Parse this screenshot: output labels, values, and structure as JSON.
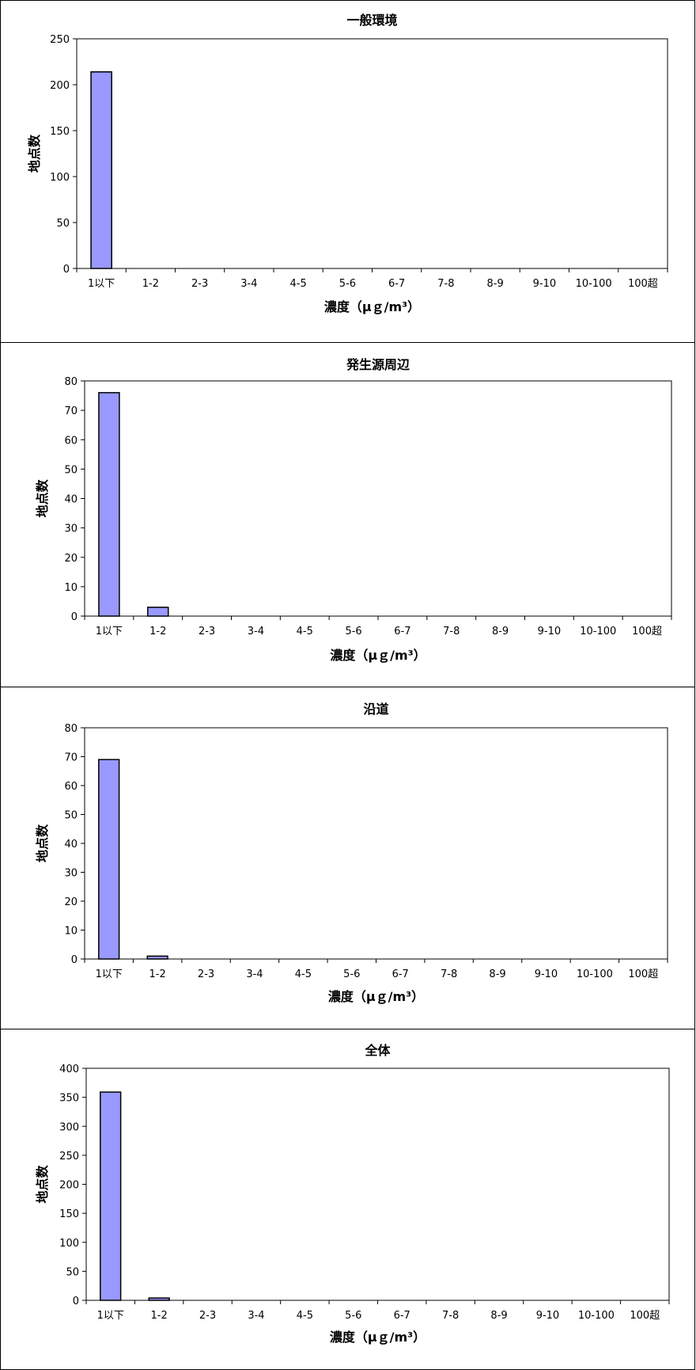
{
  "chart_data": [
    {
      "type": "bar",
      "title": "一般環境",
      "xlabel": "濃度（μｇ/m³）",
      "ylabel": "地点数",
      "categories": [
        "1以下",
        "1-2",
        "2-3",
        "3-4",
        "4-5",
        "5-6",
        "6-7",
        "7-8",
        "8-9",
        "9-10",
        "10-100",
        "100超"
      ],
      "values": [
        214,
        0,
        0,
        0,
        0,
        0,
        0,
        0,
        0,
        0,
        0,
        0
      ],
      "ylim": [
        0,
        250
      ],
      "yticks": [
        0,
        50,
        100,
        150,
        200,
        250
      ],
      "grid": false
    },
    {
      "type": "bar",
      "title": "発生源周辺",
      "xlabel": "濃度（μｇ/m³）",
      "ylabel": "地点数",
      "categories": [
        "1以下",
        "1-2",
        "2-3",
        "3-4",
        "4-5",
        "5-6",
        "6-7",
        "7-8",
        "8-9",
        "9-10",
        "10-100",
        "100超"
      ],
      "values": [
        76,
        3,
        0,
        0,
        0,
        0,
        0,
        0,
        0,
        0,
        0,
        0
      ],
      "ylim": [
        0,
        80
      ],
      "yticks": [
        0,
        10,
        20,
        30,
        40,
        50,
        60,
        70,
        80
      ],
      "grid": false
    },
    {
      "type": "bar",
      "title": "沿道",
      "xlabel": "濃度（μｇ/m³）",
      "ylabel": "地点数",
      "categories": [
        "1以下",
        "1-2",
        "2-3",
        "3-4",
        "4-5",
        "5-6",
        "6-7",
        "7-8",
        "8-9",
        "9-10",
        "10-100",
        "100超"
      ],
      "values": [
        69,
        1,
        0,
        0,
        0,
        0,
        0,
        0,
        0,
        0,
        0,
        0
      ],
      "ylim": [
        0,
        80
      ],
      "yticks": [
        0,
        10,
        20,
        30,
        40,
        50,
        60,
        70,
        80
      ],
      "grid": false
    },
    {
      "type": "bar",
      "title": "全体",
      "xlabel": "濃度（μｇ/m³）",
      "ylabel": "地点数",
      "categories": [
        "1以下",
        "1-2",
        "2-3",
        "3-4",
        "4-5",
        "5-6",
        "6-7",
        "7-8",
        "8-9",
        "9-10",
        "10-100",
        "100超"
      ],
      "values": [
        359,
        4,
        0,
        0,
        0,
        0,
        0,
        0,
        0,
        0,
        0,
        0
      ],
      "ylim": [
        0,
        400
      ],
      "yticks": [
        0,
        50,
        100,
        150,
        200,
        250,
        300,
        350,
        400
      ],
      "grid": false
    }
  ],
  "colors": {
    "bar_fill": "#9999ff",
    "bar_stroke": "#000000"
  }
}
